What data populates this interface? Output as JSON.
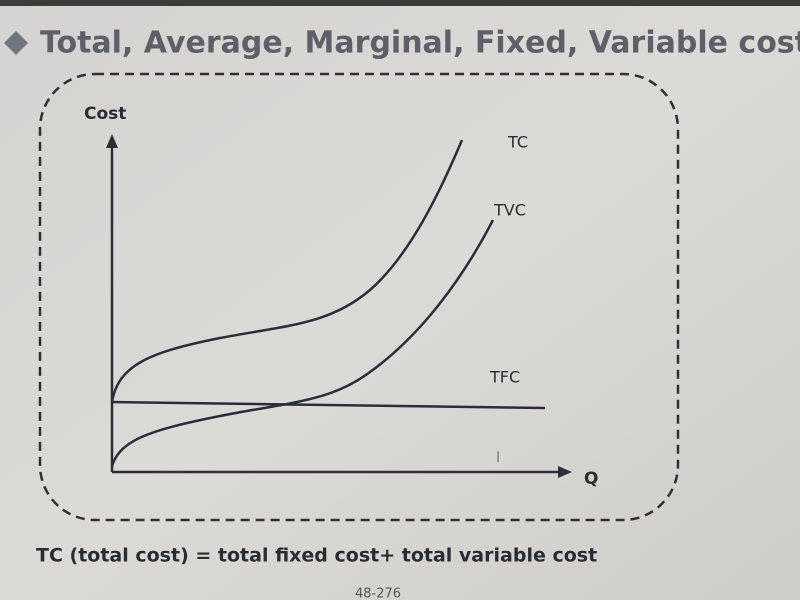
{
  "title": "Total, Average, Marginal, Fixed, Variable costs",
  "diagram": {
    "y_axis_label": "Cost",
    "x_axis_label": "Q",
    "curve_labels": [
      "TC",
      "TVC",
      "TFC"
    ]
  },
  "formula": "TC (total cost) = total fixed cost+ total variable cost",
  "page_number": "48-276"
}
